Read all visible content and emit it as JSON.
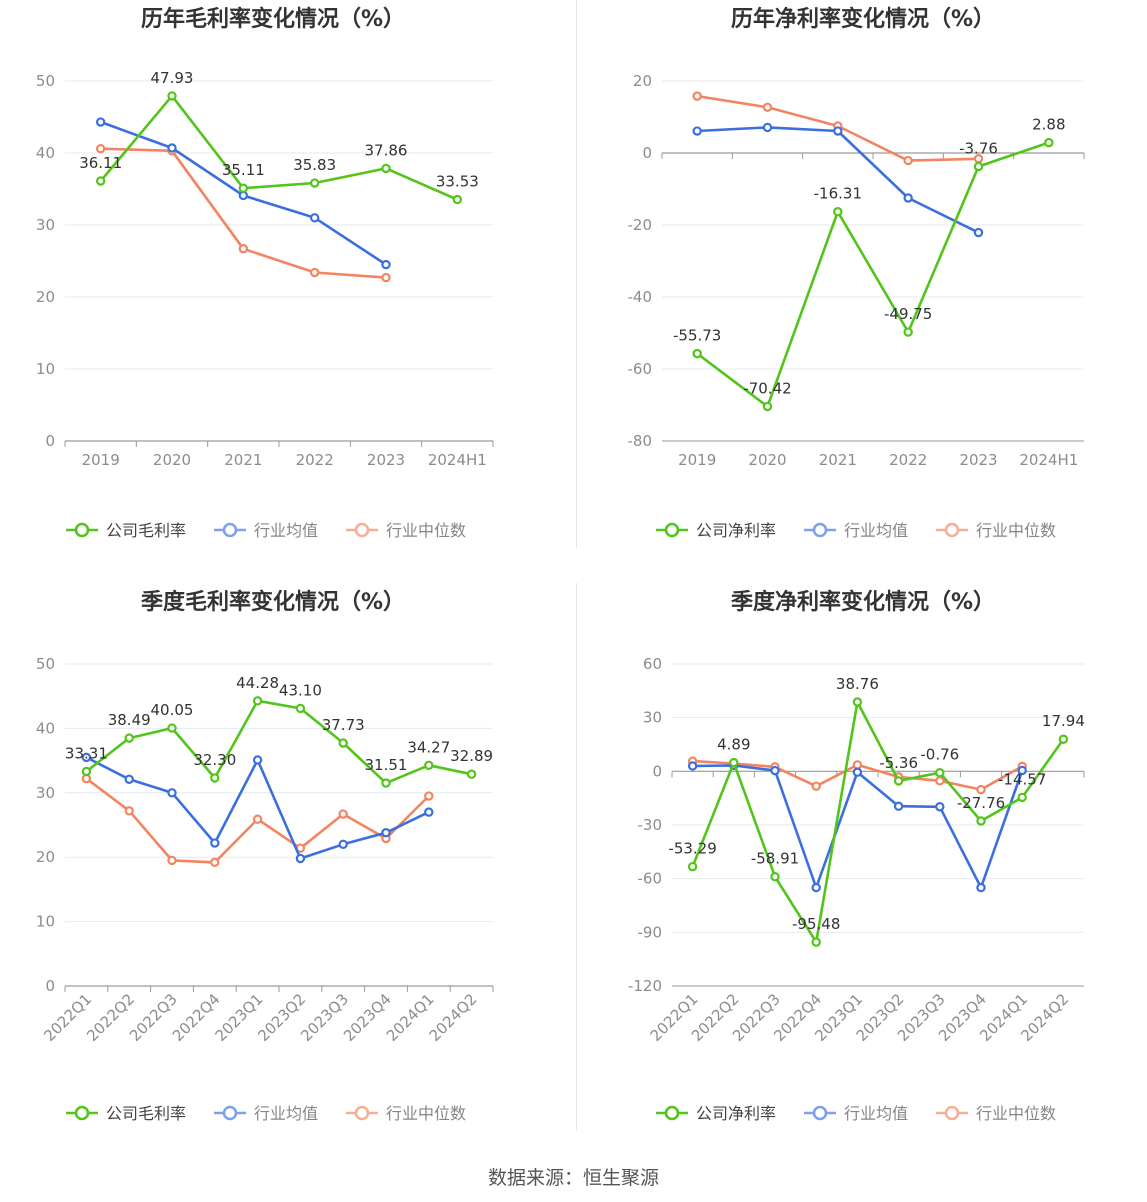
{
  "footer": {
    "source": "数据来源：恒生聚源"
  },
  "legend_labels": [
    "公司毛利率",
    "行业均值",
    "行业中位数",
    "公司净利率"
  ],
  "colors": {
    "company": "#52c41a",
    "industry_avg": "#3b6fe0",
    "industry_median": "#f4845f",
    "axis": "#9a9a9a",
    "grid": "#e4e9f2",
    "label": "#333333"
  },
  "chart_data": [
    {
      "type": "line",
      "title": "历年毛利率变化情况（%）",
      "categories": [
        "2019",
        "2020",
        "2021",
        "2022",
        "2023",
        "2024H1"
      ],
      "ylim": [
        0,
        50
      ],
      "yticks": [
        0,
        10,
        20,
        30,
        40,
        50
      ],
      "grid": true,
      "legend": "bottom",
      "series": [
        {
          "name": "公司毛利率",
          "role": "company",
          "values": [
            36.11,
            47.93,
            35.11,
            35.83,
            37.86,
            33.53
          ],
          "labels": [
            "36.11",
            "47.93",
            "35.11",
            "35.83",
            "37.86",
            "33.53"
          ]
        },
        {
          "name": "行业均值",
          "role": "industry_avg",
          "values": [
            44.3,
            40.7,
            34.1,
            31.0,
            24.5,
            null
          ]
        },
        {
          "name": "行业中位数",
          "role": "industry_median",
          "values": [
            40.6,
            40.3,
            26.7,
            23.4,
            22.7,
            null
          ]
        }
      ]
    },
    {
      "type": "line",
      "title": "历年净利率变化情况（%）",
      "categories": [
        "2019",
        "2020",
        "2021",
        "2022",
        "2023",
        "2024H1"
      ],
      "ylim": [
        -80,
        20
      ],
      "yticks": [
        -80,
        -60,
        -40,
        -20,
        0,
        20
      ],
      "grid": true,
      "legend": "bottom",
      "series": [
        {
          "name": "公司净利率",
          "role": "company",
          "values": [
            -55.73,
            -70.42,
            -16.31,
            -49.75,
            -3.76,
            2.88
          ],
          "labels": [
            "-55.73",
            "-70.42",
            "-16.31",
            "-49.75",
            "-3.76",
            "2.88"
          ]
        },
        {
          "name": "行业均值",
          "role": "industry_avg",
          "values": [
            6.1,
            7.1,
            6.1,
            -12.5,
            -22.1,
            null
          ]
        },
        {
          "name": "行业中位数",
          "role": "industry_median",
          "values": [
            15.8,
            12.7,
            7.5,
            -2.1,
            -1.6,
            null
          ]
        }
      ]
    },
    {
      "type": "line",
      "title": "季度毛利率变化情况（%）",
      "categories": [
        "2022Q1",
        "2022Q2",
        "2022Q3",
        "2022Q4",
        "2023Q1",
        "2023Q2",
        "2023Q3",
        "2023Q4",
        "2024Q1",
        "2024Q2"
      ],
      "ylim": [
        0,
        50
      ],
      "yticks": [
        0,
        10,
        20,
        30,
        40,
        50
      ],
      "grid": true,
      "legend": "bottom",
      "series": [
        {
          "name": "公司毛利率",
          "role": "company",
          "values": [
            33.31,
            38.49,
            40.05,
            32.3,
            44.28,
            43.1,
            37.73,
            31.51,
            34.27,
            32.89
          ],
          "labels": [
            "33.31",
            "38.49",
            "40.05",
            "32.30",
            "44.28",
            "43.10",
            "37.73",
            "31.51",
            "34.27",
            "32.89"
          ]
        },
        {
          "name": "行业均值",
          "role": "industry_avg",
          "values": [
            35.5,
            32.1,
            30.0,
            22.2,
            35.1,
            19.8,
            22.0,
            23.8,
            27.0,
            null
          ]
        },
        {
          "name": "行业中位数",
          "role": "industry_median",
          "values": [
            32.2,
            27.2,
            19.5,
            19.2,
            25.9,
            21.4,
            26.7,
            22.9,
            29.5,
            null
          ]
        }
      ]
    },
    {
      "type": "line",
      "title": "季度净利率变化情况（%）",
      "categories": [
        "2022Q1",
        "2022Q2",
        "2022Q3",
        "2022Q4",
        "2023Q1",
        "2023Q2",
        "2023Q3",
        "2023Q4",
        "2024Q1",
        "2024Q2"
      ],
      "ylim": [
        -120,
        60
      ],
      "yticks": [
        -120,
        -90,
        -60,
        -30,
        0,
        30,
        60
      ],
      "grid": true,
      "legend": "bottom",
      "series": [
        {
          "name": "公司净利率",
          "role": "company",
          "values": [
            -53.29,
            4.89,
            -58.91,
            -95.48,
            38.76,
            -5.36,
            -0.76,
            -27.76,
            -14.57,
            17.94
          ],
          "labels": [
            "-53.29",
            "4.89",
            "-58.91",
            "-95.48",
            "38.76",
            "-5.36",
            "-0.76",
            "-27.76",
            "-14.57",
            "17.94"
          ]
        },
        {
          "name": "行业均值",
          "role": "industry_avg",
          "values": [
            3.0,
            3.3,
            0.4,
            -65.0,
            -0.5,
            -19.5,
            -19.8,
            -65.0,
            0.5,
            null
          ]
        },
        {
          "name": "行业中位数",
          "role": "industry_median",
          "values": [
            5.7,
            4.4,
            2.5,
            -8.3,
            3.6,
            -3.1,
            -5.3,
            -10.2,
            2.8,
            null
          ]
        }
      ]
    }
  ]
}
